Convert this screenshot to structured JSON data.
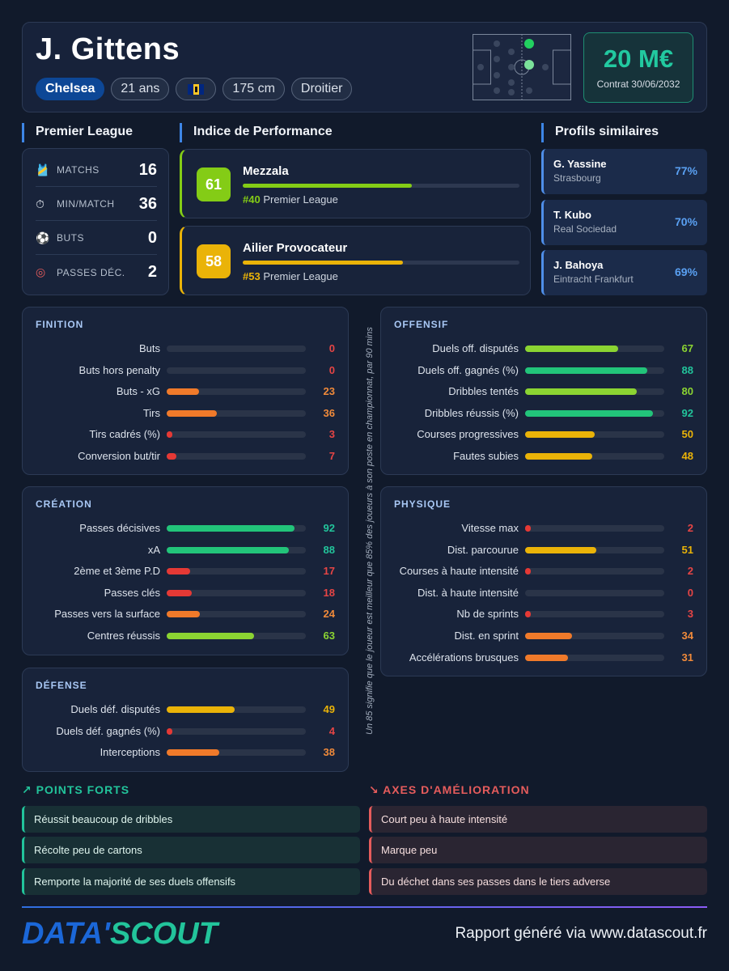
{
  "player": {
    "name": "J. Gittens",
    "club": "Chelsea",
    "age": "21 ans",
    "height": "175 cm",
    "foot": "Droitier",
    "value": "20 M€",
    "contract": "Contrat 30/06/2032"
  },
  "league": {
    "title": "Premier League",
    "stats": [
      {
        "icon": "shirt-icon",
        "label": "MATCHS",
        "value": "16"
      },
      {
        "icon": "stopwatch-icon",
        "label": "MIN/MATCH",
        "value": "36"
      },
      {
        "icon": "football-icon",
        "label": "BUTS",
        "value": "0"
      },
      {
        "icon": "target-icon",
        "label": "PASSES DÉC.",
        "value": "2"
      }
    ]
  },
  "performance": {
    "title": "Indice de Performance",
    "items": [
      {
        "score": "61",
        "name": "Mezzala",
        "rank": "#40",
        "league": "Premier League",
        "color": "#84cc16",
        "pct": 61
      },
      {
        "score": "58",
        "name": "Ailier Provocateur",
        "rank": "#53",
        "league": "Premier League",
        "color": "#eab308",
        "pct": 58
      }
    ]
  },
  "similar": {
    "title": "Profils similaires",
    "items": [
      {
        "name": "G. Yassine",
        "club": "Strasbourg",
        "pct": "77%"
      },
      {
        "name": "T. Kubo",
        "club": "Real Sociedad",
        "pct": "70%"
      },
      {
        "name": "J. Bahoya",
        "club": "Eintracht Frankfurt",
        "pct": "69%"
      }
    ]
  },
  "panels": {
    "finition": {
      "title": "FINITION",
      "stats": [
        {
          "label": "Buts",
          "value": 0
        },
        {
          "label": "Buts hors penalty",
          "value": 0
        },
        {
          "label": "Buts - xG",
          "value": 23
        },
        {
          "label": "Tirs",
          "value": 36
        },
        {
          "label": "Tirs cadrés (%)",
          "value": 3
        },
        {
          "label": "Conversion but/tir",
          "value": 7
        }
      ]
    },
    "offensif": {
      "title": "OFFENSIF",
      "stats": [
        {
          "label": "Duels off. disputés",
          "value": 67
        },
        {
          "label": "Duels off. gagnés (%)",
          "value": 88
        },
        {
          "label": "Dribbles tentés",
          "value": 80
        },
        {
          "label": "Dribbles réussis (%)",
          "value": 92
        },
        {
          "label": "Courses progressives",
          "value": 50
        },
        {
          "label": "Fautes subies",
          "value": 48
        }
      ]
    },
    "creation": {
      "title": "CRÉATION",
      "stats": [
        {
          "label": "Passes décisives",
          "value": 92
        },
        {
          "label": "xA",
          "value": 88
        },
        {
          "label": "2ème et 3ème P.D",
          "value": 17
        },
        {
          "label": "Passes clés",
          "value": 18
        },
        {
          "label": "Passes vers la surface",
          "value": 24
        },
        {
          "label": "Centres réussis",
          "value": 63
        }
      ]
    },
    "physique": {
      "title": "PHYSIQUE",
      "stats": [
        {
          "label": "Vitesse max",
          "value": 2
        },
        {
          "label": "Dist. parcourue",
          "value": 51
        },
        {
          "label": "Courses à haute intensité",
          "value": 2
        },
        {
          "label": "Dist. à haute intensité",
          "value": 0
        },
        {
          "label": "Nb de sprints",
          "value": 3
        },
        {
          "label": "Dist. en sprint",
          "value": 34
        },
        {
          "label": "Accélérations brusques",
          "value": 31
        }
      ]
    },
    "defense": {
      "title": "DÉFENSE",
      "stats": [
        {
          "label": "Duels déf. disputés",
          "value": 49
        },
        {
          "label": "Duels déf. gagnés (%)",
          "value": 4
        },
        {
          "label": "Interceptions",
          "value": 38
        }
      ]
    }
  },
  "note": "Un 85 signifie que le joueur est meilleur que 85% des joueurs à son poste en championnat, par 90 mins",
  "strengths": {
    "title": "POINTS FORTS",
    "items": [
      "Réussit beaucoup de dribbles",
      "Récolte peu de cartons",
      "Remporte la majorité de ses duels offensifs"
    ]
  },
  "improvements": {
    "title": "AXES D'AMÉLIORATION",
    "items": [
      "Court peu à haute intensité",
      "Marque peu",
      "Du déchet dans ses passes dans le tiers adverse"
    ]
  },
  "footer": {
    "logo_part1": "DATA'",
    "logo_part2": "SCOUT",
    "text": "Rapport généré via www.datascout.fr"
  },
  "colors": {
    "accent": "#3d86e6",
    "green": "#22c49b",
    "red": "#e65c5c"
  }
}
